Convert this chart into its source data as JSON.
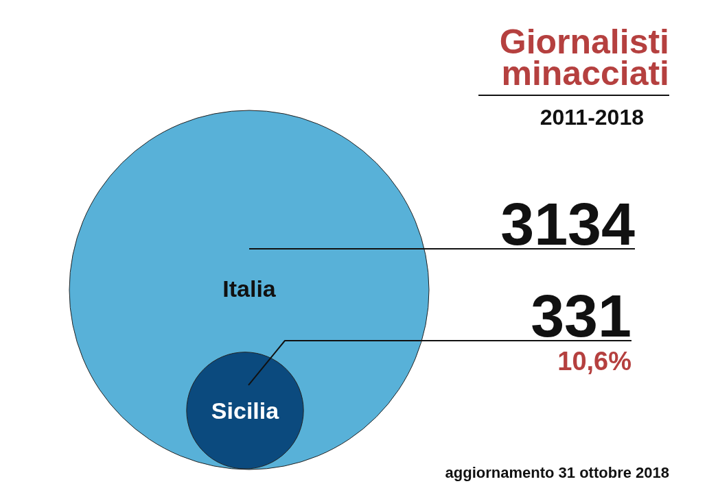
{
  "chart_data": {
    "type": "other",
    "title": "Giornalisti minacciati",
    "subtitle": "2011-2018",
    "categories": [
      "Italia",
      "Sicilia"
    ],
    "values": [
      3134,
      331
    ],
    "colors": [
      "#58b1d8",
      "#0b4a7e"
    ],
    "value_labels": [
      "3134",
      "331"
    ],
    "annotations": [
      "10,6%",
      "aggiornamento 31 ottobre 2018"
    ]
  }
}
